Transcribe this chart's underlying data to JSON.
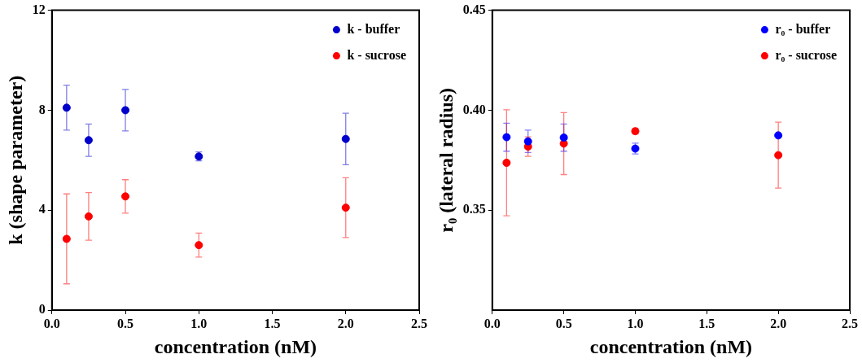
{
  "chart_data": [
    {
      "type": "scatter",
      "xlabel": "concentration (nM)",
      "ylabel": "k (shape parameter)",
      "xlim": [
        0,
        2.5
      ],
      "xticks": [
        {
          "value": 0,
          "label": "0.0"
        },
        0.5,
        {
          "value": 1,
          "label": "1.0"
        },
        1.5,
        {
          "value": 2,
          "label": "2.0"
        },
        2.5
      ],
      "ylim": [
        0,
        12
      ],
      "yticks": [
        0,
        4,
        8,
        12
      ],
      "grid": false,
      "legend": "top right",
      "marker": "circle",
      "x": [
        0.1,
        0.25,
        0.5,
        1,
        2
      ],
      "series": [
        {
          "name": "k - buffer",
          "color": "#0000cc",
          "values": [
            8.1,
            6.8,
            8.0,
            6.15,
            6.85
          ],
          "errors": [
            0.9,
            0.65,
            0.83,
            0.18,
            1.03
          ]
        },
        {
          "name": "k - sucrose",
          "color": "#ff0000",
          "values": [
            2.85,
            3.75,
            4.55,
            2.6,
            4.1
          ],
          "errors": [
            1.8,
            0.95,
            0.67,
            0.48,
            1.2
          ]
        }
      ]
    },
    {
      "type": "scatter",
      "xlabel": "concentration (nM)",
      "ylabel": "r₀ (lateral radius)",
      "xlim": [
        0,
        2.5
      ],
      "xticks": [
        {
          "value": 0,
          "label": "0.0"
        },
        0.5,
        {
          "value": 1,
          "label": "1.0"
        },
        1.5,
        {
          "value": 2,
          "label": "2.0"
        },
        2.5
      ],
      "ylim": [
        0.3,
        0.45
      ],
      "yticks": [
        0.35,
        {
          "value": 0.4,
          "label": "0.40"
        },
        0.45
      ],
      "grid": false,
      "legend": "top right",
      "marker": "circle",
      "x": [
        0.1,
        0.25,
        0.5,
        1,
        2
      ],
      "series": [
        {
          "name": "r₀ - buffer",
          "color": "#0000ff",
          "values": [
            0.3865,
            0.3844,
            0.3863,
            0.3808,
            0.3874
          ],
          "errors": [
            0.007,
            0.0056,
            0.0068,
            0.0027,
            null
          ]
        },
        {
          "name": "r₀ - sucrose",
          "color": "#ff0000",
          "values": [
            0.3737,
            0.3818,
            0.3833,
            0.3895,
            0.3775
          ],
          "errors": [
            0.0265,
            0.0049,
            0.0155,
            0.0014,
            0.0165
          ]
        }
      ]
    }
  ]
}
